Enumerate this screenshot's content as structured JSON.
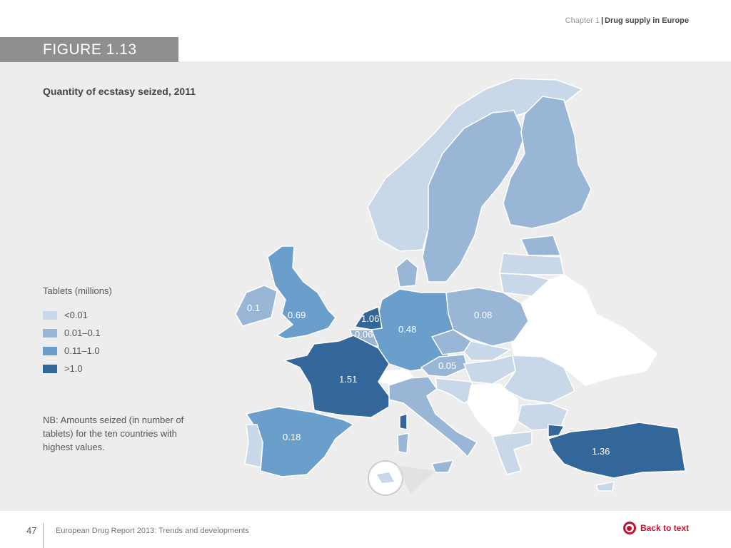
{
  "header": {
    "chapter": "Chapter 1",
    "section": "Drug supply in Europe"
  },
  "figure": {
    "label": "FIGURE 1.13",
    "title": "Quantity of ecstasy seized, 2011"
  },
  "legend": {
    "heading": "Tablets (millions)",
    "items": [
      {
        "label": "<0.01",
        "color": "#c9d8e8"
      },
      {
        "label": "0.01–0.1",
        "color": "#9ab6d6"
      },
      {
        "label": "0.11–1.0",
        "color": "#6a9fcc"
      },
      {
        "label": ">1.0",
        "color": "#336699"
      }
    ]
  },
  "note": "NB: Amounts seized (in number of tablets) for the ten countries with highest values.",
  "map_values": {
    "ireland": "0.1",
    "uk": "0.69",
    "netherlands": "1.06",
    "belgium": "0.06",
    "germany": "0.48",
    "poland": "0.08",
    "austria": "0.05",
    "france": "1.51",
    "spain": "0.18",
    "turkey": "1.36"
  },
  "footer": {
    "page": "47",
    "report": "European Drug Report 2013: Trends and developments",
    "back": "Back to text"
  }
}
